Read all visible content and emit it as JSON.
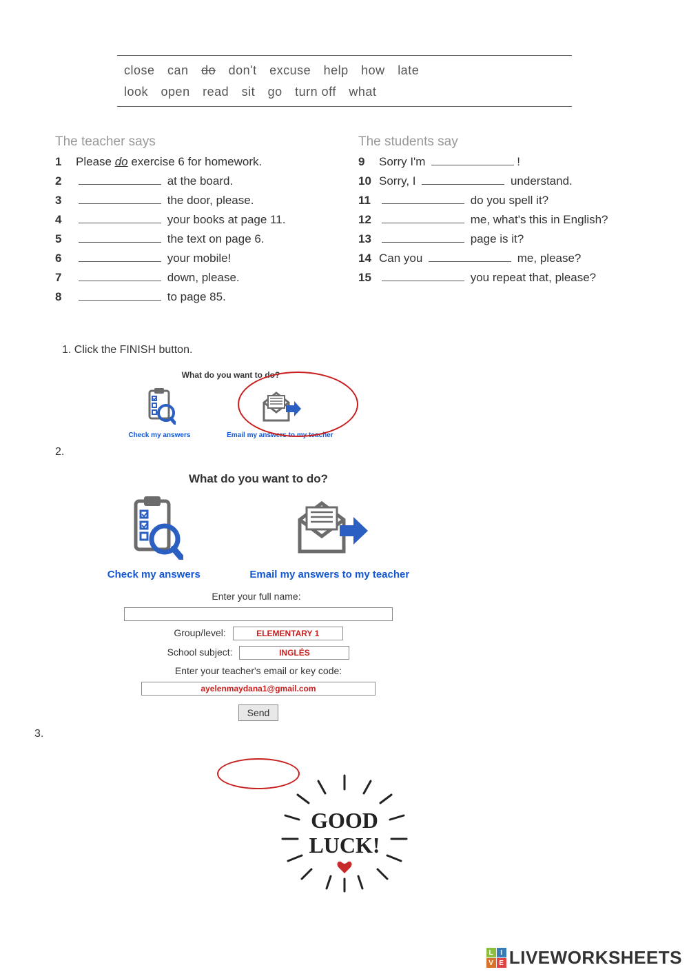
{
  "wordbank": {
    "line1": [
      "close",
      "can",
      "do",
      "don't",
      "excuse",
      "help",
      "how",
      "late"
    ],
    "strike_index": 2,
    "line2": [
      "look",
      "open",
      "read",
      "sit",
      "go",
      "turn off",
      "what"
    ]
  },
  "left": {
    "title": "The teacher says",
    "items": [
      {
        "n": "1",
        "pre": "Please ",
        "fill": "do",
        "post": " exercise 6 for homework."
      },
      {
        "n": "2",
        "pre": "",
        "post": " at the board."
      },
      {
        "n": "3",
        "pre": "",
        "post": " the door, please."
      },
      {
        "n": "4",
        "pre": "",
        "post": " your books at page 11."
      },
      {
        "n": "5",
        "pre": "",
        "post": " the text on page 6."
      },
      {
        "n": "6",
        "pre": "",
        "post": " your mobile!"
      },
      {
        "n": "7",
        "pre": "",
        "post": " down, please."
      },
      {
        "n": "8",
        "pre": "",
        "post": " to page 85."
      }
    ]
  },
  "right": {
    "title": "The students say",
    "items": [
      {
        "n": "9",
        "pre": "Sorry I'm ",
        "post": "!"
      },
      {
        "n": "10",
        "pre": "Sorry, I ",
        "post": " understand."
      },
      {
        "n": "11",
        "pre": "",
        "post": " do you spell it?"
      },
      {
        "n": "12",
        "pre": "",
        "post": " me, what's this in English?"
      },
      {
        "n": "13",
        "pre": "",
        "post": " page is it?"
      },
      {
        "n": "14",
        "pre": "Can you ",
        "post": " me, please?"
      },
      {
        "n": "15",
        "pre": "",
        "post": " you repeat that, please?"
      }
    ]
  },
  "instructions": {
    "step1": "1. Click the FINISH button.",
    "step2": "2.",
    "step3": "3."
  },
  "dialog": {
    "title": "What do you want to do?",
    "check": "Check my answers",
    "email": "Email my answers to my teacher"
  },
  "form": {
    "name_label": "Enter your full name:",
    "group_label": "Group/level:",
    "group_value": "ELEMENTARY 1",
    "subject_label": "School subject:",
    "subject_value": "INGLÉS",
    "email_label": "Enter your teacher's email or key code:",
    "email_value": "ayelenmaydana1@gmail.com",
    "send": "Send"
  },
  "goodluck": {
    "line1": "GOOD",
    "line2": "LUCK!"
  },
  "watermark": {
    "cells": [
      "L",
      "I",
      "V",
      "E"
    ],
    "colors": [
      "#8bbf3f",
      "#3a7db5",
      "#d8722a",
      "#d44"
    ],
    "text": "LIVEWORKSHEETS"
  },
  "colors": {
    "link_blue": "#1257d4",
    "red": "#c81e1e",
    "icon_blue": "#2b5fc1",
    "icon_gray": "#6b6b6b"
  }
}
